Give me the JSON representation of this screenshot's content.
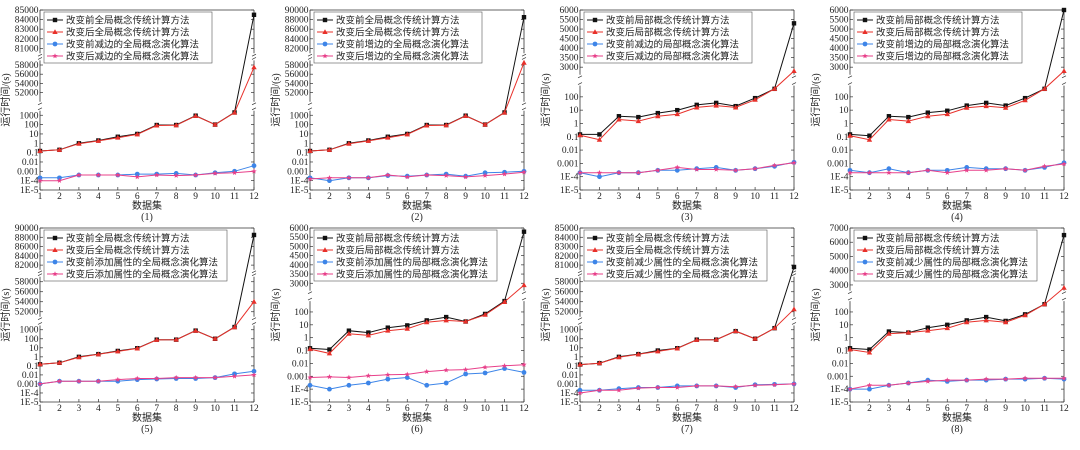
{
  "chart_data": {
    "type": "line",
    "categories": [
      "1",
      "2",
      "3",
      "4",
      "5",
      "6",
      "7",
      "8",
      "9",
      "10",
      "11",
      "12"
    ],
    "series_colors": {
      "black": "#111111",
      "red": "#e8302a",
      "blue": "#3d85e8",
      "pink": "#e8408a"
    },
    "markers": [
      "square",
      "triangle",
      "circle",
      "star"
    ],
    "y_scale": "broken axis: log lower segment, linear upper segments",
    "grid": false,
    "legend_placement": "top-left",
    "panels": [
      {
        "caption": "(1)",
        "xlabel": "数据集",
        "ylabel": "运行时间/(s)",
        "y_segments": [
          {
            "scale": "log",
            "min": 1e-05,
            "max": 3000,
            "ticks": [
              "1E-5",
              "1E-4",
              "0.001",
              "0.01",
              "0.1",
              "1",
              "10",
              "100",
              "1000"
            ]
          },
          {
            "scale": "linear",
            "min": 50000,
            "max": 59000,
            "ticks": [
              "52000",
              "54000",
              "56000",
              "58000"
            ]
          },
          {
            "scale": "linear",
            "min": 80500,
            "max": 85000,
            "ticks": [
              "81000",
              "82000",
              "83000",
              "84000",
              "85000"
            ]
          }
        ],
        "series": [
          {
            "name": "改变前全局概念传统计算方法",
            "values": [
              0.15,
              0.2,
              1,
              2,
              5,
              10,
              90,
              90,
              900,
              100,
              2000,
              84500
            ]
          },
          {
            "name": "改变后全局概念传统计算方法",
            "values": [
              0.15,
              0.2,
              0.9,
              1.8,
              4,
              9,
              80,
              85,
              850,
              100,
              1900,
              57500
            ]
          },
          {
            "name": "改变前减边的全局概念演化算法",
            "values": [
              0.0002,
              0.0002,
              0.0004,
              0.0004,
              0.0004,
              0.0005,
              0.0005,
              0.0006,
              0.0004,
              0.0007,
              0.001,
              0.004
            ]
          },
          {
            "name": "改变后减边的全局概念演化算法",
            "values": [
              0.0001,
              0.0001,
              0.0004,
              0.0004,
              0.0004,
              0.00025,
              0.0004,
              0.00035,
              0.0004,
              0.0006,
              0.0007,
              0.001
            ]
          }
        ]
      },
      {
        "caption": "(2)",
        "xlabel": "数据集",
        "ylabel": "运行时间/(s)",
        "y_segments": [
          {
            "scale": "log",
            "min": 1e-05,
            "max": 3000,
            "ticks": [
              "1E-5",
              "1E-4",
              "0.001",
              "0.01",
              "0.1",
              "1",
              "10",
              "100",
              "1000"
            ]
          },
          {
            "scale": "linear",
            "min": 50000,
            "max": 59000,
            "ticks": [
              "52000",
              "54000",
              "56000",
              "58000"
            ]
          },
          {
            "scale": "linear",
            "min": 81000,
            "max": 90000,
            "ticks": [
              "82000",
              "84000",
              "86000",
              "88000",
              "90000"
            ]
          }
        ],
        "series": [
          {
            "name": "改变前全局概念传统计算方法",
            "values": [
              0.15,
              0.2,
              1,
              2,
              5,
              10,
              90,
              90,
              900,
              100,
              2000,
              88500
            ]
          },
          {
            "name": "改变后全局概念传统计算方法",
            "values": [
              0.15,
              0.2,
              0.9,
              1.8,
              4,
              9,
              80,
              85,
              850,
              100,
              1900,
              58500
            ]
          },
          {
            "name": "改变前增边的全局概念演化算法",
            "values": [
              0.0002,
              0.0001,
              0.0002,
              0.0002,
              0.00035,
              0.0003,
              0.0004,
              0.0005,
              0.0003,
              0.0007,
              0.0008,
              0.001
            ]
          },
          {
            "name": "改变后增边的全局概念演化算法",
            "values": [
              0.00015,
              0.0002,
              0.0002,
              0.0002,
              0.0004,
              0.00025,
              0.0004,
              0.00035,
              0.00025,
              0.00035,
              0.0005,
              0.0008
            ]
          }
        ]
      },
      {
        "caption": "(3)",
        "xlabel": "数据集",
        "ylabel": "运行时间/(s)",
        "y_segments": [
          {
            "scale": "log",
            "min": 1e-05,
            "max": 700,
            "ticks": [
              "1E-5",
              "1E-4",
              "0.001",
              "0.01",
              "0.1",
              "1",
              "10",
              "100"
            ]
          },
          {
            "scale": "linear",
            "min": 2600,
            "max": 6000,
            "ticks": [
              "3000",
              "3500",
              "4000",
              "4500",
              "5000",
              "5500",
              "6000"
            ]
          }
        ],
        "series": [
          {
            "name": "改变前局部概念传统计算方法",
            "values": [
              0.15,
              0.15,
              3.5,
              3,
              6,
              10,
              25,
              35,
              20,
              80,
              400,
              5300
            ]
          },
          {
            "name": "改变后局部概念传统计算方法",
            "values": [
              0.13,
              0.06,
              2,
              1.5,
              3.5,
              5,
              16,
              22,
              16,
              60,
              400,
              2800
            ]
          },
          {
            "name": "改变前减边的局部概念演化算法",
            "values": [
              0.0002,
              0.0001,
              0.0002,
              0.0002,
              0.0003,
              0.0003,
              0.0004,
              0.0005,
              0.0003,
              0.0004,
              0.0006,
              0.0012
            ]
          },
          {
            "name": "改变后减边的局部概念演化算法",
            "values": [
              0.0002,
              0.0002,
              0.0002,
              0.0002,
              0.0003,
              0.0005,
              0.00035,
              0.00035,
              0.0003,
              0.0004,
              0.0007,
              0.0011
            ]
          }
        ]
      },
      {
        "caption": "(4)",
        "xlabel": "数据集",
        "ylabel": "运行时间/(s)",
        "y_segments": [
          {
            "scale": "log",
            "min": 1e-05,
            "max": 700,
            "ticks": [
              "1E-5",
              "1E-4",
              "0.001",
              "0.01",
              "0.1",
              "1",
              "10",
              "100"
            ]
          },
          {
            "scale": "linear",
            "min": 2600,
            "max": 6000,
            "ticks": [
              "3000",
              "3500",
              "4000",
              "4500",
              "5000",
              "5500",
              "6000"
            ]
          }
        ],
        "series": [
          {
            "name": "改变前局部概念传统计算方法",
            "values": [
              0.15,
              0.12,
              3.5,
              3,
              6.5,
              9,
              22,
              35,
              22,
              80,
              400,
              6000
            ]
          },
          {
            "name": "改变后局部概念传统计算方法",
            "values": [
              0.12,
              0.06,
              2,
              1.5,
              3.5,
              5,
              15,
              20,
              15,
              55,
              400,
              2800
            ]
          },
          {
            "name": "改变前增边的局部概念演化算法",
            "values": [
              0.0003,
              0.0002,
              0.0004,
              0.0002,
              0.0003,
              0.0003,
              0.0005,
              0.0004,
              0.0004,
              0.0003,
              0.0005,
              0.0011
            ]
          },
          {
            "name": "改变后增边的局部概念演化算法",
            "values": [
              0.0002,
              0.0002,
              0.0002,
              0.0002,
              0.0003,
              0.0002,
              0.0003,
              0.0003,
              0.0004,
              0.0003,
              0.0006,
              0.0009
            ]
          }
        ]
      },
      {
        "caption": "(5)",
        "xlabel": "数据集",
        "ylabel": "运行时间/(s)",
        "y_segments": [
          {
            "scale": "log",
            "min": 1e-05,
            "max": 3000,
            "ticks": [
              "1E-5",
              "1E-4",
              "0.001",
              "0.01",
              "0.1",
              "1",
              "10",
              "100",
              "1000"
            ]
          },
          {
            "scale": "linear",
            "min": 51000,
            "max": 59000,
            "ticks": [
              "52000",
              "54000",
              "56000",
              "58000"
            ]
          },
          {
            "scale": "linear",
            "min": 81000,
            "max": 90000,
            "ticks": [
              "82000",
              "84000",
              "86000",
              "88000",
              "90000"
            ]
          }
        ],
        "series": [
          {
            "name": "改变前全局概念传统计算方法",
            "values": [
              0.15,
              0.22,
              1,
              2,
              4.5,
              9,
              80,
              80,
              800,
              100,
              2000,
              88500
            ]
          },
          {
            "name": "改变后全局概念传统计算方法",
            "values": [
              0.15,
              0.22,
              0.9,
              1.9,
              4,
              8.5,
              75,
              80,
              780,
              100,
              1900,
              54000
            ]
          },
          {
            "name": "改变前添加属性的全局概念演化算法",
            "values": [
              0.001,
              0.002,
              0.002,
              0.002,
              0.002,
              0.003,
              0.0035,
              0.004,
              0.004,
              0.005,
              0.013,
              0.025
            ]
          },
          {
            "name": "改变后添加属性的全局概念演化算法",
            "values": [
              0.001,
              0.002,
              0.002,
              0.002,
              0.003,
              0.004,
              0.004,
              0.005,
              0.005,
              0.005,
              0.007,
              0.01
            ]
          }
        ]
      },
      {
        "caption": "(6)",
        "xlabel": "数据集",
        "ylabel": "运行时间/(s)",
        "y_segments": [
          {
            "scale": "log",
            "min": 1e-05,
            "max": 700,
            "ticks": [
              "1E-5",
              "1E-4",
              "0.001",
              "0.01",
              "0.1",
              "1",
              "10",
              "100"
            ]
          },
          {
            "scale": "linear",
            "min": 2600,
            "max": 6000,
            "ticks": [
              "3000",
              "3500",
              "4000",
              "4500",
              "5000",
              "5500",
              "6000"
            ]
          }
        ],
        "series": [
          {
            "name": "改变前局部概念传统计算方法",
            "values": [
              0.15,
              0.12,
              3.5,
              2.5,
              6,
              9,
              22,
              40,
              18,
              70,
              700,
              5800
            ]
          },
          {
            "name": "改变后局部概念传统计算方法",
            "values": [
              0.13,
              0.06,
              2,
              1.5,
              3.5,
              5,
              16,
              22,
              18,
              60,
              600,
              2900
            ]
          },
          {
            "name": "改变前添加属性的局部概念演化算法",
            "values": [
              0.0002,
              0.0001,
              0.0002,
              0.0003,
              0.0006,
              0.0008,
              0.0002,
              0.0003,
              0.0015,
              0.0018,
              0.004,
              0.002
            ]
          },
          {
            "name": "改变后添加属性的局部概念演化算法",
            "values": [
              0.0008,
              0.0009,
              0.0008,
              0.0011,
              0.0013,
              0.0014,
              0.0023,
              0.003,
              0.0033,
              0.005,
              0.0065,
              0.008
            ]
          }
        ]
      },
      {
        "caption": "(7)",
        "xlabel": "数据集",
        "ylabel": "运行时间/(s)",
        "y_segments": [
          {
            "scale": "log",
            "min": 1e-05,
            "max": 3000,
            "ticks": [
              "1E-5",
              "1E-4",
              "0.001",
              "0.01",
              "0.1",
              "1",
              "10",
              "100",
              "1000"
            ]
          },
          {
            "scale": "linear",
            "min": 51000,
            "max": 59000,
            "ticks": [
              "52000",
              "54000",
              "56000",
              "58000"
            ]
          },
          {
            "scale": "linear",
            "min": 80500,
            "max": 85000,
            "ticks": [
              "81000",
              "82000",
              "83000",
              "84000",
              "85000"
            ]
          }
        ],
        "series": [
          {
            "name": "改变前全局概念传统计算方法",
            "values": [
              0.14,
              0.2,
              1,
              2,
              5,
              9,
              80,
              80,
              700,
              100,
              1500,
              80800
            ]
          },
          {
            "name": "改变后全局概念传统计算方法",
            "values": [
              0.14,
              0.2,
              0.9,
              1.9,
              4,
              8.5,
              75,
              80,
              700,
              100,
              1500,
              52500
            ]
          },
          {
            "name": "改变前减少属性的全局概念演化算法",
            "values": [
              0.0002,
              0.0002,
              0.0003,
              0.0004,
              0.0004,
              0.0006,
              0.0006,
              0.0006,
              0.0004,
              0.0008,
              0.0009,
              0.001
            ]
          },
          {
            "name": "改变后减少属性的全局概念演化算法",
            "values": [
              0.0001,
              0.0002,
              0.0002,
              0.00035,
              0.0004,
              0.0004,
              0.0006,
              0.0006,
              0.0005,
              0.0007,
              0.0008,
              0.001
            ]
          }
        ]
      },
      {
        "caption": "(8)",
        "xlabel": "数据集",
        "ylabel": "运行时间/(s)",
        "y_segments": [
          {
            "scale": "log",
            "min": 1e-05,
            "max": 700,
            "ticks": [
              "1E-5",
              "1E-4",
              "0.001",
              "0.01",
              "0.1",
              "1",
              "10",
              "100"
            ]
          },
          {
            "scale": "linear",
            "min": 2600,
            "max": 7000,
            "ticks": [
              "3000",
              "4000",
              "5000",
              "6000",
              "7000"
            ]
          }
        ],
        "series": [
          {
            "name": "改变前局部概念传统计算方法",
            "values": [
              0.15,
              0.12,
              3,
              2.5,
              6,
              10,
              22,
              40,
              20,
              65,
              400,
              6500
            ]
          },
          {
            "name": "改变后局部概念传统计算方法",
            "values": [
              0.12,
              0.07,
              2,
              2.5,
              3.5,
              5.5,
              16,
              22,
              16,
              55,
              400,
              2800
            ]
          },
          {
            "name": "改变前减少属性的局部概念演化算法",
            "values": [
              0.0001,
              0.0001,
              0.0002,
              0.0003,
              0.0005,
              0.0004,
              0.0005,
              0.0005,
              0.0006,
              0.0006,
              0.0007,
              0.0006
            ]
          },
          {
            "name": "改变后减少属性的局部概念演化算法",
            "values": [
              0.0001,
              0.0002,
              0.0002,
              0.0003,
              0.0004,
              0.0005,
              0.0005,
              0.0006,
              0.0006,
              0.0007,
              0.0007,
              0.0007
            ]
          }
        ]
      }
    ]
  }
}
